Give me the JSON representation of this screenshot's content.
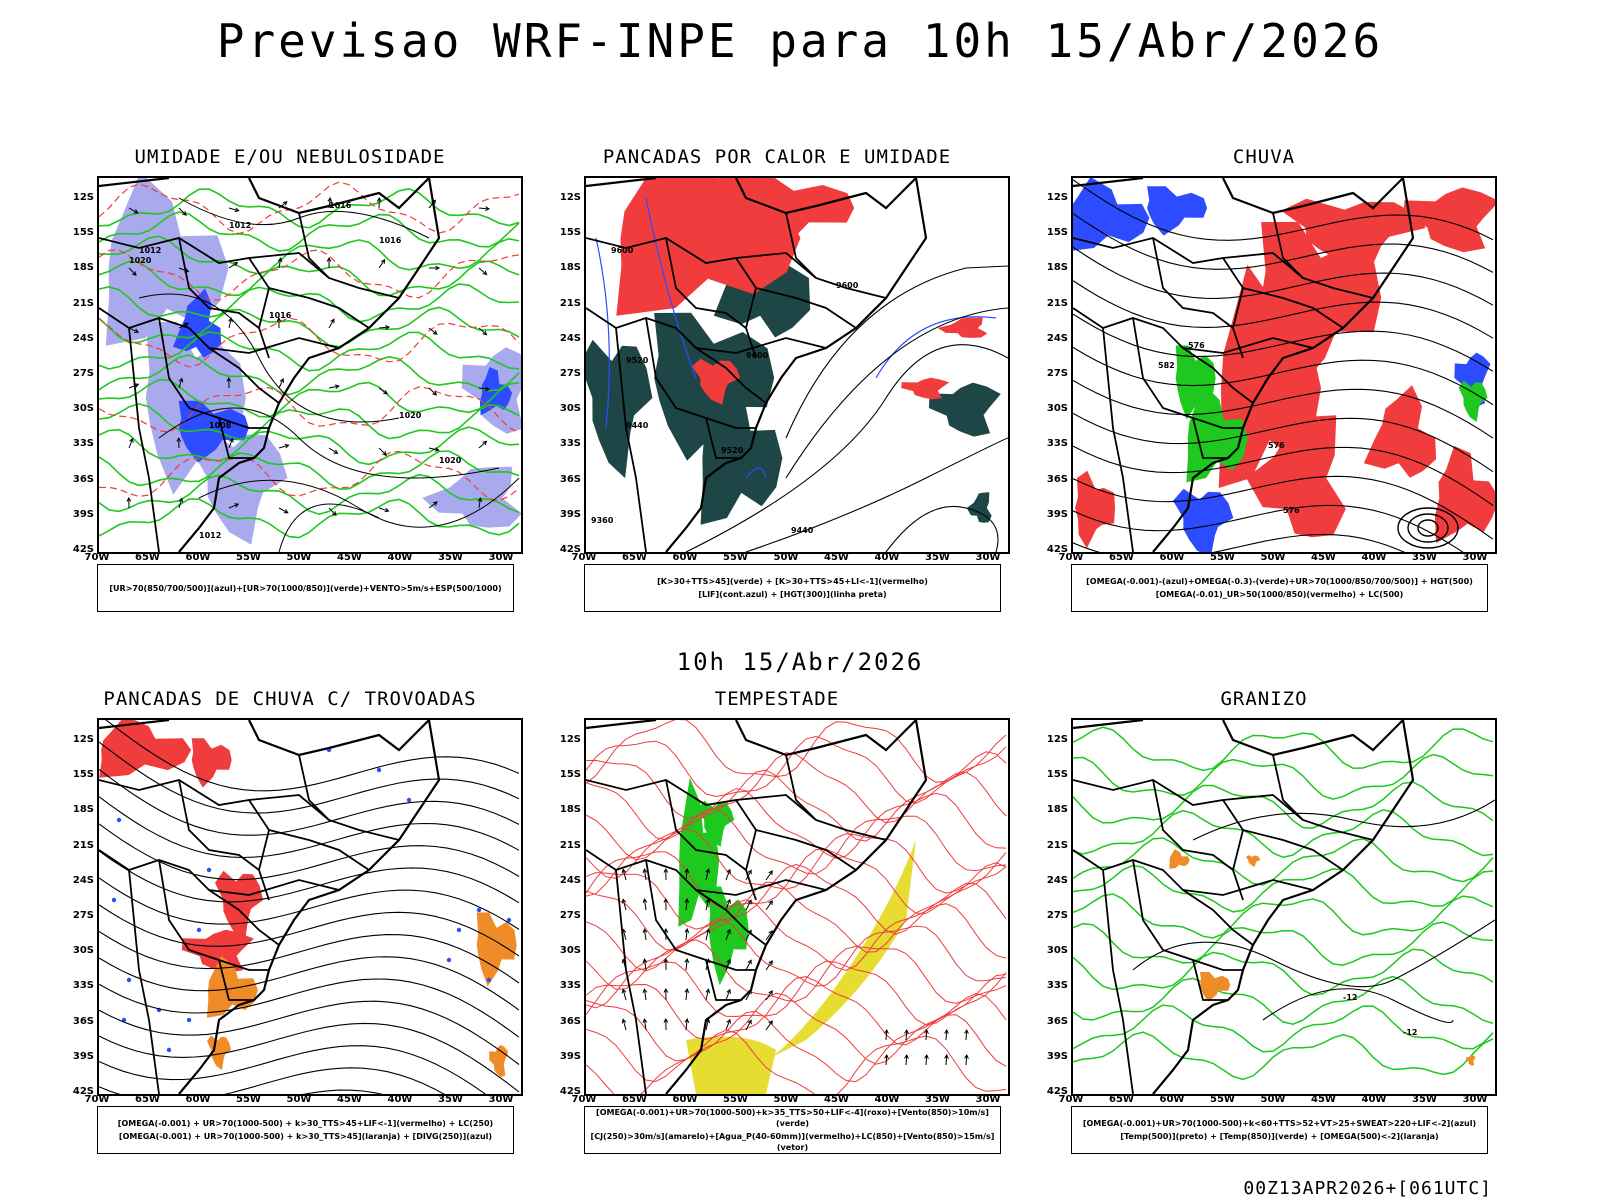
{
  "main_title": "Previsao WRF-INPE  para 10h 15/Abr/2026",
  "mid_date": "10h 15/Abr/2026",
  "footer": "00Z13APR2026+[061UTC]",
  "lat_labels": [
    "12S",
    "15S",
    "18S",
    "21S",
    "24S",
    "27S",
    "30S",
    "33S",
    "36S",
    "39S",
    "42S"
  ],
  "lon_labels": [
    "70W",
    "65W",
    "60W",
    "55W",
    "50W",
    "45W",
    "40W",
    "35W",
    "30W"
  ],
  "panels": [
    {
      "title": "UMIDADE E/OU NEBULOSIDADE",
      "legend_lines": [
        "[UR>70(850/700/500)](azul)+[UR>70(1000/850)](verde)+VENTO>5m/s+ESP(500/1000)"
      ],
      "labels": [
        "1012",
        "1016",
        "1020",
        "1008",
        "1012",
        "1016",
        "1020",
        "1016",
        "1020",
        "1012"
      ]
    },
    {
      "title": "PANCADAS POR CALOR E UMIDADE",
      "legend_lines": [
        "[K>30+TTS>45](verde) + [K>30+TTS>45+LI<-1](vermelho)",
        "[LIF](cont.azul) + [HGT(300)](linha preta)"
      ],
      "labels": [
        "9600",
        "9520",
        "9440",
        "9520",
        "9600",
        "9600",
        "9440",
        "9360"
      ]
    },
    {
      "title": "CHUVA",
      "legend_lines": [
        "[OMEGA(-0.001)-(azul)+OMEGA(-0.3)-(verde)+UR>70(1000/850/700/500)] + HGT(500)",
        "[OMEGA(-0.01)_UR>50(1000/850)(vermelho) + LC(500)"
      ],
      "labels": [
        "576",
        "582",
        "576",
        "576"
      ]
    },
    {
      "title": "PANCADAS DE CHUVA C/ TROVOADAS",
      "legend_lines": [
        "[OMEGA(-0.001) + UR>70(1000-500) + k>30_TTS>45+LIF<-1](vermelho) + LC(250)",
        "[OMEGA(-0.001) + UR>70(1000-500) + k>30_TTS>45](laranja) + [DIVG(250)](azul)"
      ],
      "labels": []
    },
    {
      "title": "TEMPESTADE",
      "legend_lines": [
        "[OMEGA(-0.001)+UR>70(1000-500)+k>35_TTS>50+LIF<-4](roxo)+[Vento(850)>10m/s](verde)",
        "[CJ(250)>30m/s](amarelo)+[Agua_P(40-60mm)](vermelho)+LC(850)+[Vento(850)>15m/s](vetor)"
      ],
      "labels": []
    },
    {
      "title": "GRANIZO",
      "legend_lines": [
        "[OMEGA(-0.001)+UR>70(1000-500)+k<60+TTS>52+VT>25+SWEAT>220+LIF<-2](azul)",
        "[Temp(500)](preto) + [Temp(850)](verde) + [OMEGA(500)<-2](laranja)"
      ],
      "labels": [
        "-12",
        "-12"
      ]
    }
  ],
  "colors": {
    "red": "#f03c3c",
    "green": "#1ec81e",
    "blue": "#2d4bff",
    "lavender": "#a9a9ee",
    "darkteal": "#1e4646",
    "orange": "#f08c28",
    "yellow": "#e6dc32",
    "black": "#000000"
  }
}
